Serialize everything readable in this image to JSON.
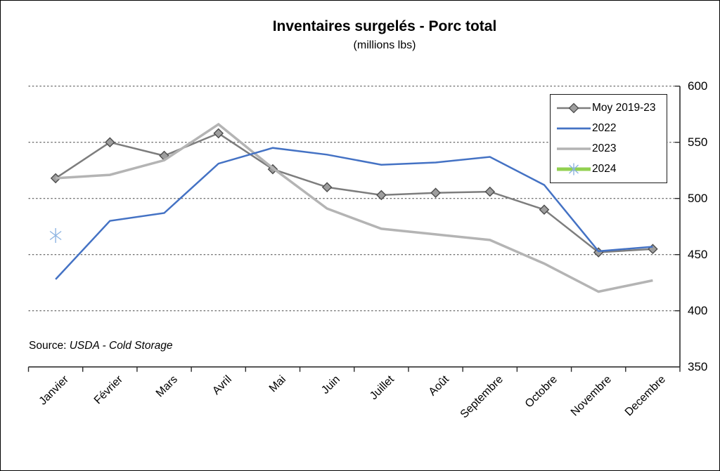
{
  "header": {
    "title": "Inventaires surgelés - Porc total",
    "subtitle": "(millions lbs)"
  },
  "source": {
    "prefix": "Source: ",
    "text": "USDA - Cold Storage"
  },
  "legend": {
    "items": [
      {
        "label": "Moy 2019-23"
      },
      {
        "label": "2022"
      },
      {
        "label": "2023"
      },
      {
        "label": "2024"
      }
    ]
  },
  "colors": {
    "moy_line": "#7d7d7d",
    "moy_marker_fill": "#9e9e9e",
    "moy_marker_edge": "#4d4d4d",
    "line_2022": "#4472C4",
    "line_2023": "#b4b4b4",
    "line_2024": "#92D050",
    "marker_2024": "#8DB4E2",
    "axis": "#2b2b2b",
    "gridline": "#444444"
  },
  "chart_data": {
    "type": "line",
    "title": "Inventaires surgelés - Porc total",
    "subtitle": "(millions lbs)",
    "xlabel": "",
    "ylabel": "",
    "ylim": [
      350,
      600
    ],
    "yticks": [
      350,
      400,
      450,
      500,
      550,
      600
    ],
    "grid": "horizontal-dashed",
    "legend_position": "top-right",
    "categories": [
      "Janvier",
      "Février",
      "Mars",
      "Avril",
      "Mai",
      "Juin",
      "Juillet",
      "Août",
      "Septembre",
      "Octobre",
      "Novembre",
      "Decembre"
    ],
    "series": [
      {
        "name": "Moy 2019-23",
        "color": "#7d7d7d",
        "width": 2.5,
        "marker": "diamond",
        "marker_fill": "#9e9e9e",
        "marker_edge": "#4d4d4d",
        "values": [
          518,
          550,
          538,
          558,
          526,
          510,
          503,
          505,
          506,
          490,
          452,
          455
        ]
      },
      {
        "name": "2022",
        "color": "#4472C4",
        "width": 2.5,
        "marker": "none",
        "values": [
          428,
          480,
          487,
          531,
          545,
          539,
          530,
          532,
          537,
          512,
          453,
          457
        ]
      },
      {
        "name": "2023",
        "color": "#b4b4b4",
        "width": 3.5,
        "marker": "none",
        "values": [
          518,
          521,
          534,
          566,
          527,
          491,
          473,
          468,
          463,
          442,
          417,
          427
        ]
      },
      {
        "name": "2024",
        "color": "#92D050",
        "width": 5,
        "marker": "asterisk",
        "marker_color": "#8DB4E2",
        "values": [
          467,
          null,
          null,
          null,
          null,
          null,
          null,
          null,
          null,
          null,
          null,
          null
        ]
      }
    ]
  }
}
